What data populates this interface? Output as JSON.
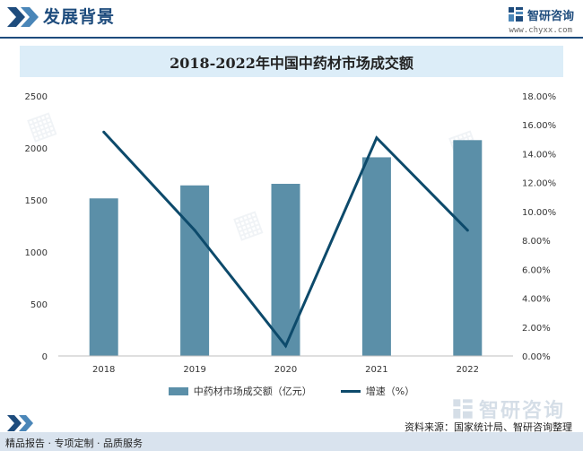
{
  "header": {
    "section_title": "发展背景",
    "brand_name": "智研咨询",
    "brand_url": "www.chyxx.com"
  },
  "chart_data": {
    "type": "bar",
    "title": "2018-2022年中国中药材市场成交额",
    "categories": [
      "2018",
      "2019",
      "2020",
      "2021",
      "2022"
    ],
    "series": [
      {
        "name": "中药材市场成交额（亿元）",
        "type": "bar",
        "axis": "left",
        "values": [
          1515,
          1640,
          1655,
          1910,
          2075
        ],
        "color": "#5b8fa8"
      },
      {
        "name": "增速（%）",
        "type": "line",
        "axis": "right",
        "values": [
          15.5,
          8.7,
          0.7,
          15.1,
          8.7
        ],
        "color": "#0d4a6b"
      }
    ],
    "y_left": {
      "min": 0,
      "max": 2500,
      "step": 500,
      "ticks": [
        "0",
        "500",
        "1000",
        "1500",
        "2000",
        "2500"
      ]
    },
    "y_right": {
      "min": 0,
      "max": 18,
      "step": 2,
      "ticks": [
        "0.00%",
        "2.00%",
        "4.00%",
        "6.00%",
        "8.00%",
        "10.00%",
        "12.00%",
        "14.00%",
        "16.00%",
        "18.00%"
      ]
    },
    "grid": false,
    "legend_position": "bottom"
  },
  "footer": {
    "source": "资料来源：国家统计局、智研咨询整理",
    "tagline": "精品报告 · 专项定制 · 品质服务",
    "bottom_brand": "智研咨询"
  }
}
